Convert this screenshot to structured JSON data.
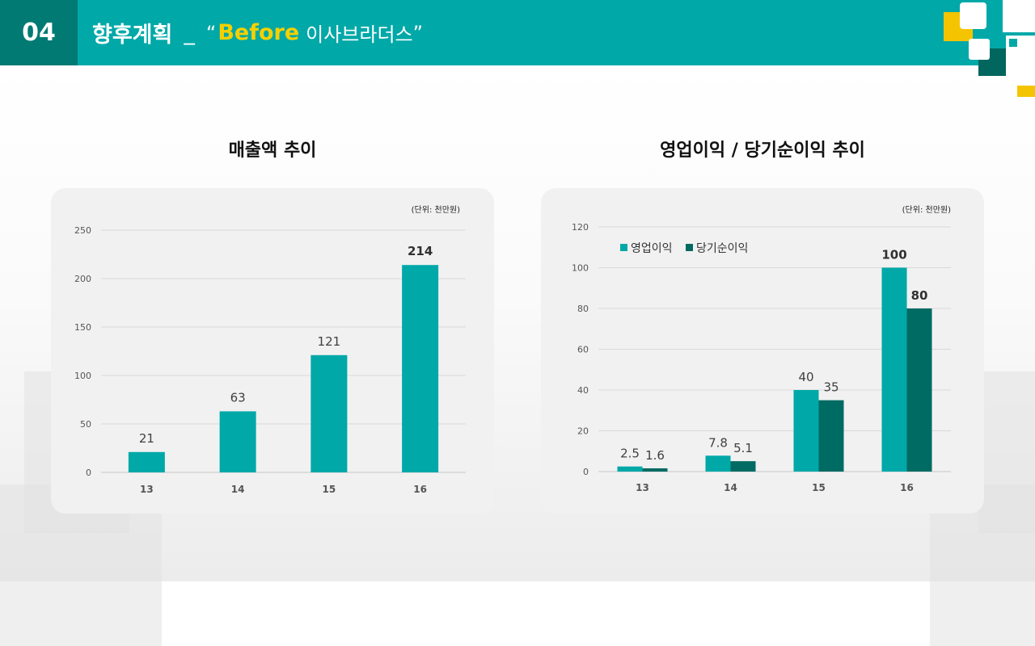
{
  "header": {
    "number": "04",
    "title": "향후계획",
    "separator": "_",
    "quote_open": "“",
    "highlight": "Before",
    "subtitle": "이사브라더스",
    "quote_close": "”",
    "colors": {
      "bar": "#00a8a8",
      "number_bg": "#007a73",
      "highlight": "#f5d000"
    }
  },
  "chart_data": [
    {
      "type": "bar",
      "title": "매출액 추이",
      "unit": "(단위: 천만원)",
      "categories": [
        "13",
        "14",
        "15",
        "16"
      ],
      "values": [
        21,
        63,
        121,
        214
      ],
      "value_labels": [
        "21",
        "63",
        "121",
        "214"
      ],
      "yticks": [
        "0",
        "50",
        "100",
        "150",
        "200",
        "250"
      ],
      "ylim": [
        0,
        250
      ],
      "grid": true,
      "color": "#00a8a8"
    },
    {
      "type": "bar",
      "title": "영업이익 / 당기순이익 추이",
      "unit": "(단위: 천만원)",
      "categories": [
        "13",
        "14",
        "15",
        "16"
      ],
      "series": [
        {
          "name": "영업이익",
          "values": [
            2.5,
            7.8,
            40,
            100
          ],
          "labels": [
            "2.5",
            "7.8",
            "40",
            "100"
          ],
          "color": "#00a8a8"
        },
        {
          "name": "당기순이익",
          "values": [
            1.6,
            5.1,
            35,
            80
          ],
          "labels": [
            "1.6",
            "5.1",
            "35",
            "80"
          ],
          "color": "#006b62"
        }
      ],
      "yticks": [
        "0",
        "20",
        "40",
        "60",
        "80",
        "100",
        "120"
      ],
      "ylim": [
        0,
        120
      ],
      "grid": true,
      "legend": "top-left"
    }
  ]
}
